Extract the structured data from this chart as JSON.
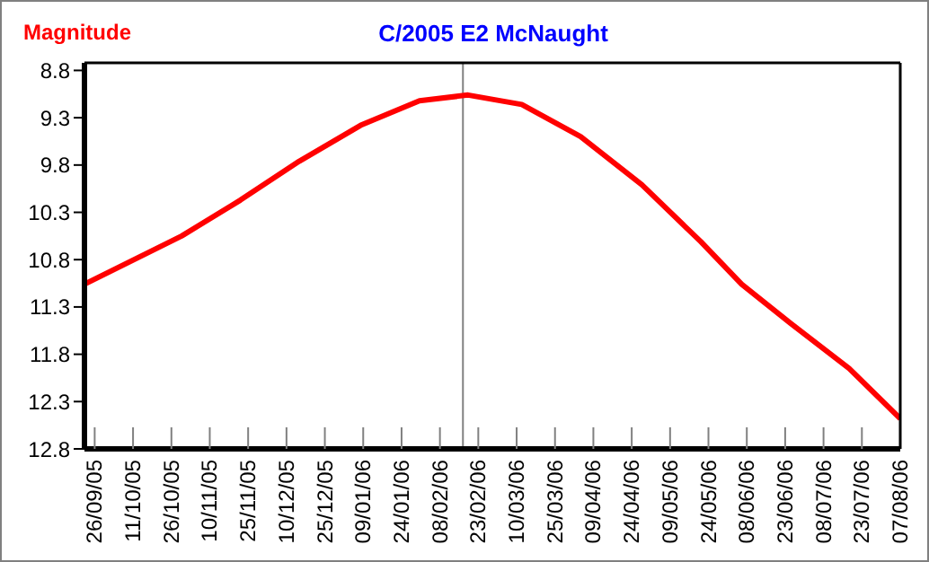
{
  "chart_data": {
    "type": "line",
    "title": "C/2005 E2 McNaught",
    "ylabel": "Magnitude",
    "x": [
      "2005-09-22",
      "2005-10-30",
      "2005-11-22",
      "2005-12-15",
      "2006-01-08",
      "2006-01-31",
      "2006-02-19",
      "2006-03-12",
      "2006-04-04",
      "2006-04-28",
      "2006-05-21",
      "2006-06-06",
      "2006-06-25",
      "2006-07-18",
      "2006-08-07"
    ],
    "series": [
      {
        "color": "#ff0000",
        "values": [
          11.06,
          10.55,
          10.17,
          9.76,
          9.38,
          9.12,
          9.06,
          9.16,
          9.5,
          10.01,
          10.61,
          11.06,
          11.47,
          11.95,
          12.48
        ]
      }
    ],
    "xlim": [
      "2005-09-22",
      "2006-08-07"
    ],
    "ylim": [
      12.8,
      8.72
    ],
    "yticks": [
      8.8,
      9.3,
      9.8,
      10.3,
      10.8,
      11.3,
      11.8,
      12.3,
      12.8
    ],
    "xticks": [
      {
        "value": "2005-09-26",
        "label": "26/09/05"
      },
      {
        "value": "2005-10-11",
        "label": "11/10/05"
      },
      {
        "value": "2005-10-26",
        "label": "26/10/05"
      },
      {
        "value": "2005-11-10",
        "label": "10/11/05"
      },
      {
        "value": "2005-11-25",
        "label": "25/11/05"
      },
      {
        "value": "2005-12-10",
        "label": "10/12/05"
      },
      {
        "value": "2005-12-25",
        "label": "25/12/05"
      },
      {
        "value": "2006-01-09",
        "label": "09/01/06"
      },
      {
        "value": "2006-01-24",
        "label": "24/01/06"
      },
      {
        "value": "2006-02-08",
        "label": "08/02/06"
      },
      {
        "value": "2006-02-23",
        "label": "23/02/06"
      },
      {
        "value": "2006-03-10",
        "label": "10/03/06"
      },
      {
        "value": "2006-03-25",
        "label": "25/03/06"
      },
      {
        "value": "2006-04-09",
        "label": "09/04/06"
      },
      {
        "value": "2006-04-24",
        "label": "24/04/06"
      },
      {
        "value": "2006-05-09",
        "label": "09/05/06"
      },
      {
        "value": "2006-05-24",
        "label": "24/05/06"
      },
      {
        "value": "2006-06-08",
        "label": "08/06/06"
      },
      {
        "value": "2006-06-23",
        "label": "23/06/06"
      },
      {
        "value": "2006-07-08",
        "label": "08/07/06"
      },
      {
        "value": "2006-07-23",
        "label": "23/07/06"
      },
      {
        "value": "2006-08-07",
        "label": "07/08/06"
      }
    ],
    "ref_lines": [
      {
        "axis": "x",
        "value": "2006-02-17",
        "color": "#808080"
      }
    ],
    "grid": false,
    "marker": "none",
    "line_style": "solid"
  }
}
